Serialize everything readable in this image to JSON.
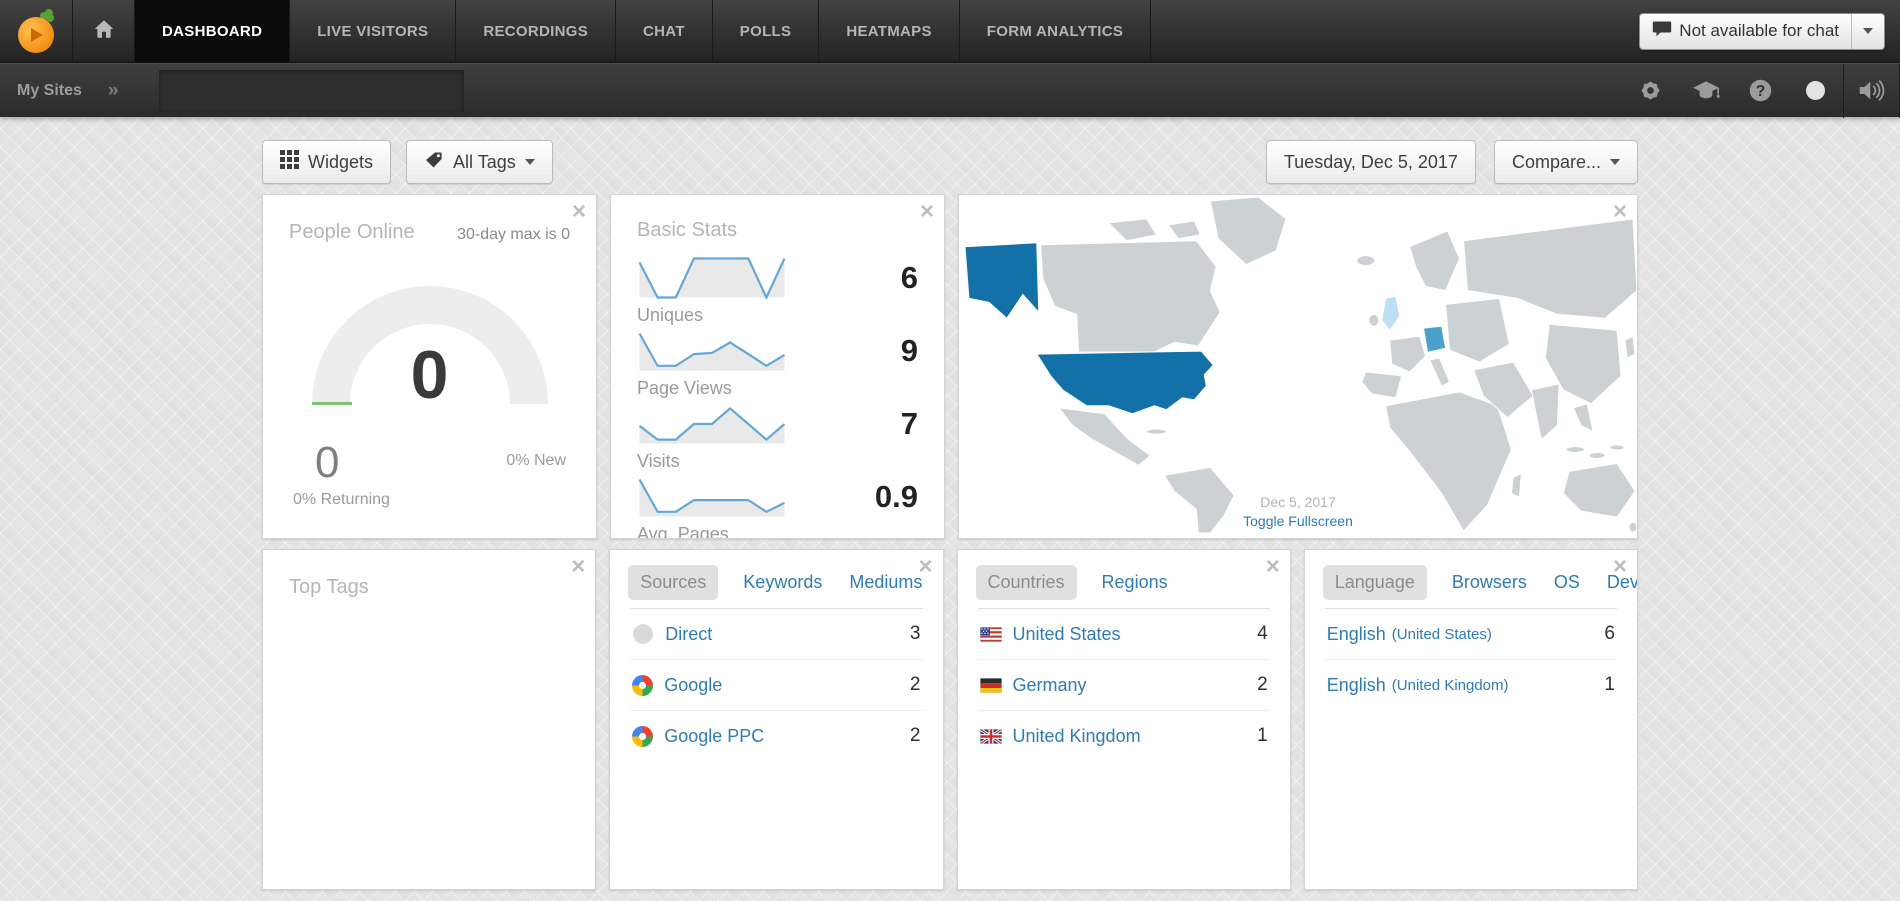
{
  "colors": {
    "accent_blue": "#2e7cb5",
    "spark_line": "#64a8d8",
    "spark_fill": "#e9e9e9",
    "gauge_track": "#ededed",
    "gauge_green": "#7cc576",
    "map_land": "#ccd1d4",
    "map_us": "#1471a8",
    "map_germany": "#4d9fcc",
    "map_uk": "#bcdff2"
  },
  "nav": {
    "tabs": [
      {
        "label": "DASHBOARD",
        "active": true
      },
      {
        "label": "LIVE VISITORS",
        "active": false
      },
      {
        "label": "RECORDINGS",
        "active": false
      },
      {
        "label": "CHAT",
        "active": false
      },
      {
        "label": "POLLS",
        "active": false
      },
      {
        "label": "HEATMAPS",
        "active": false
      },
      {
        "label": "FORM ANALYTICS",
        "active": false
      }
    ],
    "chat_status_label": "Not available for chat"
  },
  "subnav": {
    "breadcrumb": "My Sites",
    "separator": "»",
    "icons": [
      "settings-gear-icon",
      "academy-cap-icon",
      "help-icon",
      "status-dot-icon",
      "sound-icon"
    ]
  },
  "toolbar": {
    "widgets_label": "Widgets",
    "all_tags_label": "All Tags",
    "date_label": "Tuesday, Dec 5, 2017",
    "compare_label": "Compare..."
  },
  "widgets": {
    "people_online": {
      "title": "People Online",
      "max_note": "30-day max is 0",
      "value": "0",
      "returning_value": "0",
      "returning_label": "0% Returning",
      "new_label": "0% New"
    },
    "basic_stats": {
      "title": "Basic Stats",
      "rows": [
        {
          "label": "Uniques",
          "value": "6",
          "spark": [
            0.9,
            0,
            0,
            1,
            1,
            1,
            1,
            0,
            1
          ]
        },
        {
          "label": "Page Views",
          "value": "9",
          "spark": [
            0.95,
            0.12,
            0.12,
            0.42,
            0.45,
            0.72,
            0.42,
            0.12,
            0.4
          ]
        },
        {
          "label": "Visits",
          "value": "7",
          "spark": [
            0.45,
            0.1,
            0.1,
            0.5,
            0.5,
            0.9,
            0.5,
            0.1,
            0.5
          ]
        },
        {
          "label": "Avg. Pages",
          "value": "0.9",
          "spark": [
            0.95,
            0.12,
            0.12,
            0.42,
            0.42,
            0.42,
            0.42,
            0.12,
            0.35
          ]
        }
      ]
    },
    "visitor_map": {
      "date_label": "Dec 5, 2017",
      "fullscreen_label": "Toggle Fullscreen",
      "highlighted_countries": [
        {
          "country": "United States",
          "tone": "dark-blue"
        },
        {
          "country": "Germany",
          "tone": "medium-blue"
        },
        {
          "country": "United Kingdom",
          "tone": "light-blue"
        }
      ]
    },
    "top_tags": {
      "title": "Top Tags"
    },
    "sources": {
      "tabs": [
        {
          "label": "Sources",
          "active": true
        },
        {
          "label": "Keywords",
          "active": false
        },
        {
          "label": "Mediums",
          "active": false
        }
      ],
      "rows": [
        {
          "icon": "direct-icon",
          "label": "Direct",
          "value": "3"
        },
        {
          "icon": "google-icon",
          "label": "Google",
          "value": "2"
        },
        {
          "icon": "google-icon",
          "label": "Google PPC",
          "value": "2"
        }
      ]
    },
    "countries": {
      "tabs": [
        {
          "label": "Countries",
          "active": true
        },
        {
          "label": "Regions",
          "active": false
        }
      ],
      "rows": [
        {
          "icon": "flag-us-icon",
          "label": "United States",
          "value": "4"
        },
        {
          "icon": "flag-de-icon",
          "label": "Germany",
          "value": "2"
        },
        {
          "icon": "flag-gb-icon",
          "label": "United Kingdom",
          "value": "1"
        }
      ]
    },
    "languages": {
      "tabs": [
        {
          "label": "Language",
          "active": true
        },
        {
          "label": "Browsers",
          "active": false
        },
        {
          "label": "OS",
          "active": false
        },
        {
          "label": "Devices",
          "active": false
        }
      ],
      "rows": [
        {
          "label": "English",
          "sub": "(United States)",
          "value": "6"
        },
        {
          "label": "English",
          "sub": "(United Kingdom)",
          "value": "1"
        }
      ]
    }
  },
  "chart_data": [
    {
      "type": "line",
      "title": "Basic Stats sparklines",
      "legend": false,
      "grid": false,
      "series": [
        {
          "name": "Uniques",
          "current_value": 6,
          "shape_normalized": [
            0.9,
            0,
            0,
            1,
            1,
            1,
            1,
            0,
            1
          ]
        },
        {
          "name": "Page Views",
          "current_value": 9,
          "shape_normalized": [
            0.95,
            0.12,
            0.12,
            0.42,
            0.45,
            0.72,
            0.42,
            0.12,
            0.4
          ]
        },
        {
          "name": "Visits",
          "current_value": 7,
          "shape_normalized": [
            0.45,
            0.1,
            0.1,
            0.5,
            0.5,
            0.9,
            0.5,
            0.1,
            0.5
          ]
        },
        {
          "name": "Avg. Pages",
          "current_value": 0.9,
          "shape_normalized": [
            0.95,
            0.12,
            0.12,
            0.42,
            0.42,
            0.42,
            0.42,
            0.12,
            0.35
          ]
        }
      ]
    },
    {
      "type": "gauge",
      "title": "People Online",
      "value": 0,
      "max_note": "30-day max is 0",
      "returning_pct": 0,
      "new_pct": 0
    }
  ]
}
